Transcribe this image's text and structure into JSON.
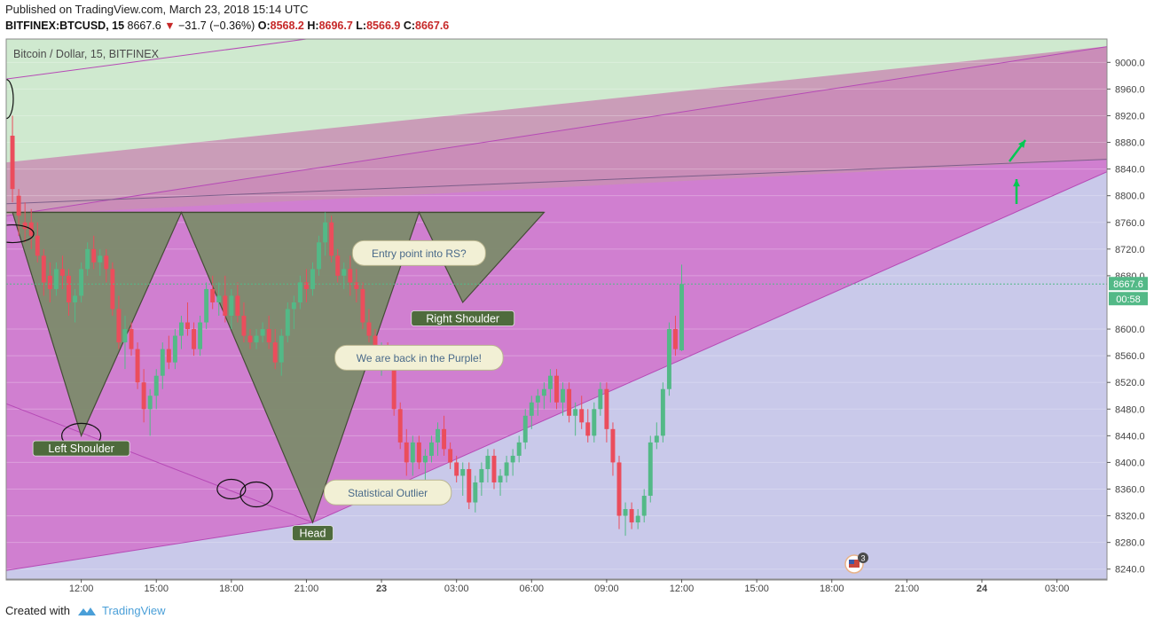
{
  "header": {
    "published": "Published on TradingView.com, March 23, 2018 15:14 UTC",
    "symbol": "BITFINEX:BTCUSD, 15",
    "last": "8667.6",
    "change": "−31.7 (−0.36%)",
    "o_label": "O:",
    "o_value": "8568.2",
    "h_label": "H:",
    "h_value": "8696.7",
    "l_label": "L:",
    "l_value": "8566.9",
    "c_label": "C:",
    "c_value": "8667.6"
  },
  "footer": {
    "created_with": "Created with",
    "brand": "TradingView"
  },
  "colors": {
    "up": "#53b987",
    "down": "#eb4d5c",
    "green_zone": "#cfe9cf",
    "purple_zone": "#d07fd0",
    "lavender_zone": "#c9c9ea",
    "pattern_fill": "#7d8b6c",
    "label_bg": "#4e6b3c",
    "callout_bg": "#f2f0d5",
    "price_tag": "#53b987"
  },
  "chart_data": {
    "type": "candlestick",
    "title": "Bitcoin / Dollar, 15, BITFINEX",
    "last_price": "8667.6",
    "countdown": "00:58",
    "y_ticks": [
      9000,
      8960,
      8920,
      8880,
      8840,
      8800,
      8760,
      8720,
      8680,
      8600,
      8560,
      8520,
      8480,
      8440,
      8400,
      8360,
      8320,
      8280,
      8240
    ],
    "y_tick_labels": [
      "9000.0",
      "8960.0",
      "8920.0",
      "8880.0",
      "8840.0",
      "8800.0",
      "8760.0",
      "8720.0",
      "8680.0",
      "8600.0",
      "8560.0",
      "8520.0",
      "8480.0",
      "8440.0",
      "8400.0",
      "8360.0",
      "8320.0",
      "8280.0",
      "8240.0"
    ],
    "ylim": [
      8225,
      9035
    ],
    "x_ticks": [
      "12:00",
      "15:00",
      "18:00",
      "21:00",
      "23",
      "03:00",
      "06:00",
      "09:00",
      "12:00",
      "15:00",
      "18:00",
      "21:00",
      "24",
      "03:00"
    ],
    "x_tick_slots": [
      10,
      22,
      34,
      46,
      58,
      70,
      82,
      94,
      106,
      118,
      130,
      142,
      154,
      166
    ],
    "slots_visible": [
      -2,
      174
    ],
    "candle_slot_start": -1,
    "ohlc": [
      [
        8890,
        8920,
        8790,
        8810
      ],
      [
        8800,
        8810,
        8740,
        8770
      ],
      [
        8760,
        8790,
        8730,
        8750
      ],
      [
        8760,
        8780,
        8720,
        8740
      ],
      [
        8740,
        8760,
        8700,
        8710
      ],
      [
        8710,
        8720,
        8650,
        8670
      ],
      [
        8680,
        8700,
        8640,
        8660
      ],
      [
        8660,
        8700,
        8650,
        8690
      ],
      [
        8690,
        8710,
        8660,
        8680
      ],
      [
        8680,
        8690,
        8620,
        8640
      ],
      [
        8640,
        8660,
        8610,
        8650
      ],
      [
        8650,
        8700,
        8640,
        8690
      ],
      [
        8690,
        8730,
        8680,
        8720
      ],
      [
        8720,
        8740,
        8690,
        8700
      ],
      [
        8700,
        8720,
        8680,
        8710
      ],
      [
        8710,
        8720,
        8670,
        8690
      ],
      [
        8690,
        8700,
        8620,
        8630
      ],
      [
        8630,
        8650,
        8570,
        8580
      ],
      [
        8580,
        8620,
        8540,
        8600
      ],
      [
        8600,
        8610,
        8560,
        8570
      ],
      [
        8570,
        8580,
        8510,
        8520
      ],
      [
        8520,
        8540,
        8460,
        8480
      ],
      [
        8480,
        8510,
        8440,
        8500
      ],
      [
        8500,
        8540,
        8480,
        8530
      ],
      [
        8530,
        8580,
        8510,
        8570
      ],
      [
        8570,
        8590,
        8540,
        8550
      ],
      [
        8550,
        8600,
        8540,
        8590
      ],
      [
        8590,
        8620,
        8570,
        8610
      ],
      [
        8610,
        8640,
        8590,
        8600
      ],
      [
        8600,
        8610,
        8560,
        8570
      ],
      [
        8570,
        8620,
        8560,
        8610
      ],
      [
        8610,
        8670,
        8600,
        8660
      ],
      [
        8660,
        8680,
        8630,
        8640
      ],
      [
        8640,
        8670,
        8620,
        8650
      ],
      [
        8650,
        8680,
        8610,
        8620
      ],
      [
        8620,
        8660,
        8600,
        8650
      ],
      [
        8650,
        8670,
        8610,
        8620
      ],
      [
        8620,
        8640,
        8580,
        8590
      ],
      [
        8590,
        8600,
        8570,
        8580
      ],
      [
        8580,
        8600,
        8570,
        8590
      ],
      [
        8590,
        8610,
        8580,
        8600
      ],
      [
        8600,
        8620,
        8570,
        8580
      ],
      [
        8580,
        8600,
        8540,
        8550
      ],
      [
        8550,
        8600,
        8530,
        8590
      ],
      [
        8590,
        8640,
        8580,
        8630
      ],
      [
        8630,
        8650,
        8600,
        8640
      ],
      [
        8640,
        8680,
        8630,
        8670
      ],
      [
        8670,
        8690,
        8640,
        8660
      ],
      [
        8660,
        8700,
        8650,
        8690
      ],
      [
        8690,
        8740,
        8680,
        8730
      ],
      [
        8730,
        8775,
        8710,
        8760
      ],
      [
        8760,
        8770,
        8700,
        8710
      ],
      [
        8710,
        8720,
        8670,
        8680
      ],
      [
        8680,
        8700,
        8660,
        8690
      ],
      [
        8690,
        8710,
        8650,
        8670
      ],
      [
        8670,
        8690,
        8640,
        8660
      ],
      [
        8660,
        8670,
        8600,
        8610
      ],
      [
        8610,
        8630,
        8580,
        8590
      ],
      [
        8590,
        8600,
        8540,
        8550
      ],
      [
        8550,
        8580,
        8530,
        8570
      ],
      [
        8570,
        8580,
        8540,
        8550
      ],
      [
        8550,
        8560,
        8470,
        8480
      ],
      [
        8480,
        8490,
        8420,
        8430
      ],
      [
        8430,
        8450,
        8380,
        8400
      ],
      [
        8400,
        8440,
        8380,
        8430
      ],
      [
        8430,
        8440,
        8390,
        8400
      ],
      [
        8400,
        8420,
        8370,
        8410
      ],
      [
        8410,
        8440,
        8400,
        8430
      ],
      [
        8430,
        8460,
        8410,
        8450
      ],
      [
        8450,
        8470,
        8410,
        8420
      ],
      [
        8420,
        8430,
        8390,
        8400
      ],
      [
        8400,
        8410,
        8370,
        8380
      ],
      [
        8380,
        8400,
        8350,
        8390
      ],
      [
        8390,
        8400,
        8330,
        8340
      ],
      [
        8340,
        8380,
        8325,
        8370
      ],
      [
        8370,
        8400,
        8350,
        8390
      ],
      [
        8390,
        8420,
        8370,
        8410
      ],
      [
        8410,
        8420,
        8360,
        8370
      ],
      [
        8370,
        8390,
        8350,
        8380
      ],
      [
        8380,
        8410,
        8370,
        8400
      ],
      [
        8400,
        8420,
        8380,
        8410
      ],
      [
        8410,
        8440,
        8400,
        8430
      ],
      [
        8430,
        8480,
        8420,
        8470
      ],
      [
        8470,
        8500,
        8450,
        8490
      ],
      [
        8490,
        8510,
        8470,
        8500
      ],
      [
        8500,
        8520,
        8480,
        8510
      ],
      [
        8510,
        8540,
        8490,
        8530
      ],
      [
        8530,
        8540,
        8480,
        8490
      ],
      [
        8490,
        8520,
        8470,
        8510
      ],
      [
        8510,
        8520,
        8460,
        8470
      ],
      [
        8470,
        8490,
        8440,
        8480
      ],
      [
        8480,
        8500,
        8450,
        8460
      ],
      [
        8460,
        8480,
        8430,
        8440
      ],
      [
        8440,
        8490,
        8430,
        8480
      ],
      [
        8480,
        8520,
        8470,
        8510
      ],
      [
        8510,
        8520,
        8430,
        8450
      ],
      [
        8450,
        8460,
        8380,
        8400
      ],
      [
        8400,
        8410,
        8300,
        8320
      ],
      [
        8320,
        8340,
        8290,
        8330
      ],
      [
        8330,
        8340,
        8300,
        8310
      ],
      [
        8310,
        8330,
        8300,
        8320
      ],
      [
        8320,
        8360,
        8310,
        8350
      ],
      [
        8350,
        8440,
        8340,
        8430
      ],
      [
        8430,
        8460,
        8420,
        8440
      ],
      [
        8440,
        8520,
        8430,
        8510
      ],
      [
        8510,
        8610,
        8500,
        8600
      ],
      [
        8600,
        8620,
        8560,
        8570
      ],
      [
        8568.2,
        8696.7,
        8566.9,
        8667.6
      ]
    ],
    "pattern_points": [
      [
        -1,
        8775
      ],
      [
        10,
        8440
      ],
      [
        26,
        8775
      ],
      [
        47,
        8310
      ],
      [
        64,
        8775
      ],
      [
        71,
        8640
      ],
      [
        84,
        8775
      ]
    ],
    "annotations": [
      {
        "text": "Left Shoulder",
        "kind": "label",
        "slot": 10,
        "price": 8421
      },
      {
        "text": "Head",
        "kind": "label",
        "slot": 47,
        "price": 8294
      },
      {
        "text": "Right Shoulder",
        "kind": "label",
        "slot": 71,
        "price": 8616
      },
      {
        "text": "Entry point into RS?",
        "kind": "callout",
        "slot": 64,
        "price": 8714
      },
      {
        "text": "We are back in the Purple!",
        "kind": "callout",
        "slot": 64,
        "price": 8557
      },
      {
        "text": "Statistical Outlier",
        "kind": "callout",
        "slot": 59,
        "price": 8355
      }
    ],
    "events_badge": "3"
  }
}
